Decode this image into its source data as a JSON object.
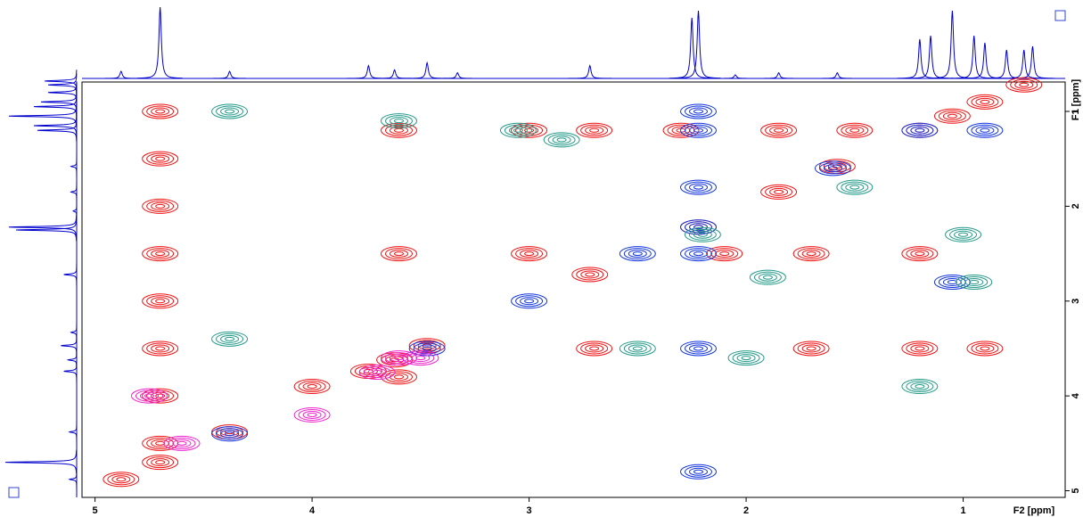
{
  "chart_data": {
    "type": "nmr2d",
    "x_label": "F2 [ppm]",
    "y_label": "F1 [ppm]",
    "xlim": [
      5.06,
      0.53
    ],
    "ylim": [
      0.69,
      5.07
    ],
    "xticks": [
      5,
      4,
      3,
      2,
      1
    ],
    "yticks": [
      1,
      2,
      3,
      4,
      5
    ],
    "spectrum": {
      "color": "#0000cc",
      "x": [
        4.88,
        4.7,
        4.38,
        3.74,
        3.62,
        3.47,
        3.33,
        2.72,
        2.25,
        2.22,
        2.05,
        1.85,
        1.58,
        1.2,
        1.15,
        1.05,
        0.95,
        0.9,
        0.8,
        0.72,
        0.68
      ],
      "values": [
        10,
        100,
        10,
        18,
        12,
        22,
        8,
        18,
        85,
        95,
        5,
        8,
        8,
        55,
        60,
        95,
        60,
        50,
        40,
        40,
        45
      ]
    },
    "series": [
      {
        "color": "#ee1111",
        "x": [
          4.88,
          4.7,
          4.38,
          3.74,
          3.62,
          3.47,
          2.72,
          2.22,
          1.85,
          1.58,
          1.2,
          1.05,
          0.9,
          0.72,
          3.6,
          3.0,
          2.7,
          2.3,
          1.85,
          1.5,
          3.6,
          3.0,
          2.1,
          1.7,
          1.2,
          2.7,
          3.6,
          4.0,
          1.2,
          0.9,
          1.7,
          4.7,
          4.7,
          4.7,
          4.7,
          4.7,
          4.7,
          4.7,
          4.7
        ],
        "y": [
          4.88,
          4.7,
          4.38,
          3.74,
          3.62,
          3.47,
          2.72,
          2.22,
          1.85,
          1.58,
          1.2,
          1.05,
          0.9,
          0.72,
          1.2,
          1.2,
          1.2,
          1.2,
          1.2,
          1.2,
          2.5,
          2.5,
          2.5,
          2.5,
          2.5,
          3.5,
          3.8,
          3.9,
          3.5,
          3.5,
          3.5,
          1.0,
          1.5,
          2.0,
          2.5,
          3.0,
          3.5,
          4.0,
          4.5
        ]
      },
      {
        "color": "#1133dd",
        "x": [
          4.38,
          3.47,
          3.0,
          2.5,
          2.22,
          2.22,
          2.22,
          2.22,
          2.22,
          2.22,
          2.22,
          1.05,
          0.9,
          1.6,
          1.2
        ],
        "y": [
          4.4,
          3.5,
          3.0,
          2.5,
          2.22,
          1.0,
          1.2,
          1.8,
          2.5,
          3.5,
          4.8,
          2.8,
          1.2,
          1.6,
          1.2
        ]
      },
      {
        "color": "#229988",
        "x": [
          4.38,
          2.85,
          2.2,
          1.5,
          1.2,
          0.95,
          2.5,
          2.0,
          4.38,
          3.6,
          1.0,
          3.05,
          1.9
        ],
        "y": [
          1.0,
          1.3,
          2.3,
          1.8,
          3.9,
          2.8,
          3.5,
          3.6,
          3.4,
          1.1,
          2.3,
          1.2,
          2.75
        ]
      },
      {
        "color": "#ee22cc",
        "x": [
          3.6,
          3.7,
          4.0,
          3.5,
          4.6,
          4.75
        ],
        "y": [
          3.6,
          3.75,
          4.2,
          3.6,
          4.5,
          4.0
        ]
      }
    ]
  }
}
